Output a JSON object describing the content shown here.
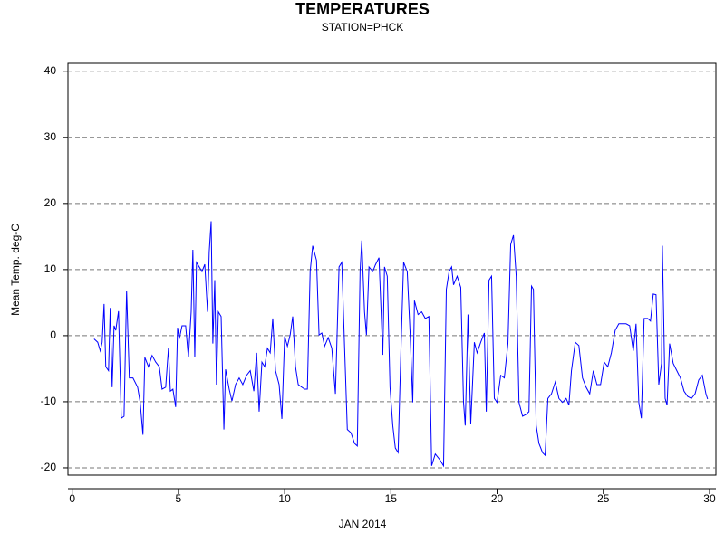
{
  "chart_data": {
    "type": "line",
    "title": "TEMPERATURES",
    "subtitle": "STATION=PHCK",
    "x_label": "JAN 2014",
    "y_label": "Mean Temp. deg-C",
    "color": "#0000ff",
    "grid": true,
    "xlim": [
      -0.2,
      30.3
    ],
    "ylim": [
      -21.1,
      41.2
    ],
    "xticks": [
      0,
      5,
      10,
      15,
      20,
      25,
      30
    ],
    "yticks": [
      -20,
      -10,
      0,
      10,
      20,
      30,
      40
    ],
    "x": [
      1.03,
      1.2,
      1.32,
      1.41,
      1.5,
      1.58,
      1.71,
      1.79,
      1.88,
      1.97,
      2.05,
      2.18,
      2.31,
      2.44,
      2.56,
      2.69,
      2.86,
      3.08,
      3.2,
      3.33,
      3.42,
      3.59,
      3.76,
      3.93,
      4.1,
      4.23,
      4.4,
      4.53,
      4.62,
      4.74,
      4.87,
      4.96,
      5.04,
      5.17,
      5.34,
      5.47,
      5.6,
      5.68,
      5.77,
      5.85,
      5.98,
      6.11,
      6.24,
      6.37,
      6.45,
      6.54,
      6.62,
      6.71,
      6.79,
      6.88,
      7.01,
      7.14,
      7.22,
      7.39,
      7.52,
      7.69,
      7.86,
      8.03,
      8.21,
      8.38,
      8.55,
      8.68,
      8.8,
      8.93,
      9.06,
      9.19,
      9.32,
      9.44,
      9.57,
      9.74,
      9.87,
      10,
      10.13,
      10.26,
      10.38,
      10.51,
      10.64,
      10.81,
      10.94,
      11.07,
      11.2,
      11.32,
      11.5,
      11.62,
      11.75,
      11.88,
      12.05,
      12.22,
      12.39,
      12.56,
      12.69,
      12.82,
      12.95,
      13.12,
      13.29,
      13.42,
      13.55,
      13.63,
      13.76,
      13.85,
      13.97,
      14.15,
      14.27,
      14.44,
      14.62,
      14.7,
      14.83,
      14.96,
      15.09,
      15.21,
      15.34,
      15.47,
      15.6,
      15.77,
      15.9,
      16.03,
      16.11,
      16.28,
      16.45,
      16.62,
      16.79,
      16.92,
      17.09,
      17.31,
      17.48,
      17.61,
      17.74,
      17.86,
      17.95,
      18.12,
      18.29,
      18.42,
      18.5,
      18.63,
      18.76,
      18.93,
      19.06,
      19.23,
      19.4,
      19.49,
      19.62,
      19.74,
      19.87,
      20,
      20.17,
      20.34,
      20.51,
      20.64,
      20.77,
      20.9,
      21.03,
      21.2,
      21.37,
      21.5,
      21.62,
      21.71,
      21.84,
      21.97,
      22.14,
      22.26,
      22.39,
      22.56,
      22.74,
      22.91,
      23.08,
      23.25,
      23.38,
      23.5,
      23.68,
      23.85,
      24.02,
      24.19,
      24.36,
      24.53,
      24.7,
      24.87,
      25.04,
      25.21,
      25.38,
      25.56,
      25.73,
      25.9,
      26.07,
      26.24,
      26.41,
      26.54,
      26.67,
      26.79,
      26.92,
      27.09,
      27.22,
      27.35,
      27.48,
      27.61,
      27.74,
      27.78,
      27.91,
      28,
      28.12,
      28.29,
      28.46,
      28.63,
      28.8,
      28.97,
      29.15,
      29.32,
      29.49,
      29.66,
      29.83,
      29.91
    ],
    "values": [
      -0.5,
      -1,
      -2.3,
      -1,
      4.8,
      -4.7,
      -5.3,
      4.2,
      -7.8,
      1.5,
      0.8,
      3.7,
      -12.5,
      -12.2,
      6.8,
      -6.4,
      -6.4,
      -7.8,
      -10.1,
      -15,
      -3.3,
      -4.7,
      -3,
      -4,
      -4.7,
      -8.1,
      -7.8,
      -1.9,
      -8.4,
      -8.1,
      -10.8,
      1.2,
      -0.5,
      1.5,
      1.5,
      -3.3,
      3.6,
      13,
      -3.3,
      11.1,
      10.4,
      9.7,
      10.8,
      3.6,
      12.7,
      17.3,
      -1.2,
      8.4,
      -7.4,
      3.6,
      2.9,
      -14.2,
      -5.1,
      -8.1,
      -9.9,
      -7.4,
      -6.4,
      -7.4,
      -6,
      -5.3,
      -8.4,
      -2.6,
      -11.5,
      -4,
      -4.7,
      -1.9,
      -2.6,
      2.6,
      -5.3,
      -7.4,
      -12.6,
      -0.1,
      -1.6,
      0.1,
      2.9,
      -4.7,
      -7.4,
      -7.8,
      -8.1,
      -8.1,
      9.7,
      13.6,
      11.4,
      0.1,
      0.4,
      -1.6,
      -0.3,
      -1.9,
      -8.8,
      10.4,
      11.1,
      -1.6,
      -14.2,
      -14.7,
      -16.3,
      -16.7,
      9.7,
      14.4,
      3.6,
      0.1,
      10.4,
      9.7,
      10.7,
      11.8,
      -2.9,
      10.4,
      9,
      -7.8,
      -13.6,
      -17,
      -17.7,
      -2.6,
      11.1,
      9.7,
      0.8,
      -10.1,
      5.3,
      3.2,
      3.6,
      2.6,
      2.9,
      -19.7,
      -17.9,
      -18.8,
      -19.7,
      7,
      9.7,
      10.4,
      7.7,
      9,
      7.3,
      -10.1,
      -13.6,
      3.2,
      -13.3,
      -1,
      -2.6,
      -1,
      0.4,
      -11.5,
      8.4,
      9,
      -9.5,
      -10.1,
      -6,
      -6.4,
      -1.2,
      13.8,
      15.2,
      9,
      -10.1,
      -12.2,
      -11.9,
      -11.5,
      7.5,
      7,
      -13.6,
      -16.3,
      -17.7,
      -18.1,
      -9.5,
      -8.8,
      -7,
      -9.5,
      -10.1,
      -9.5,
      -10.5,
      -5.3,
      -1,
      -1.5,
      -6.4,
      -7.8,
      -8.8,
      -5.3,
      -7.4,
      -7.4,
      -4,
      -4.7,
      -2.6,
      0.8,
      1.8,
      1.8,
      1.8,
      1.5,
      -2.3,
      1.8,
      -10.1,
      -12.5,
      2.6,
      2.6,
      2.2,
      6.3,
      6.2,
      -7.4,
      -4.2,
      13.6,
      -9.5,
      -10.5,
      -1.2,
      -4.2,
      -5.3,
      -6.4,
      -8.4,
      -9.2,
      -9.5,
      -8.8,
      -6.7,
      -6,
      -8.8,
      -9.6
    ]
  }
}
